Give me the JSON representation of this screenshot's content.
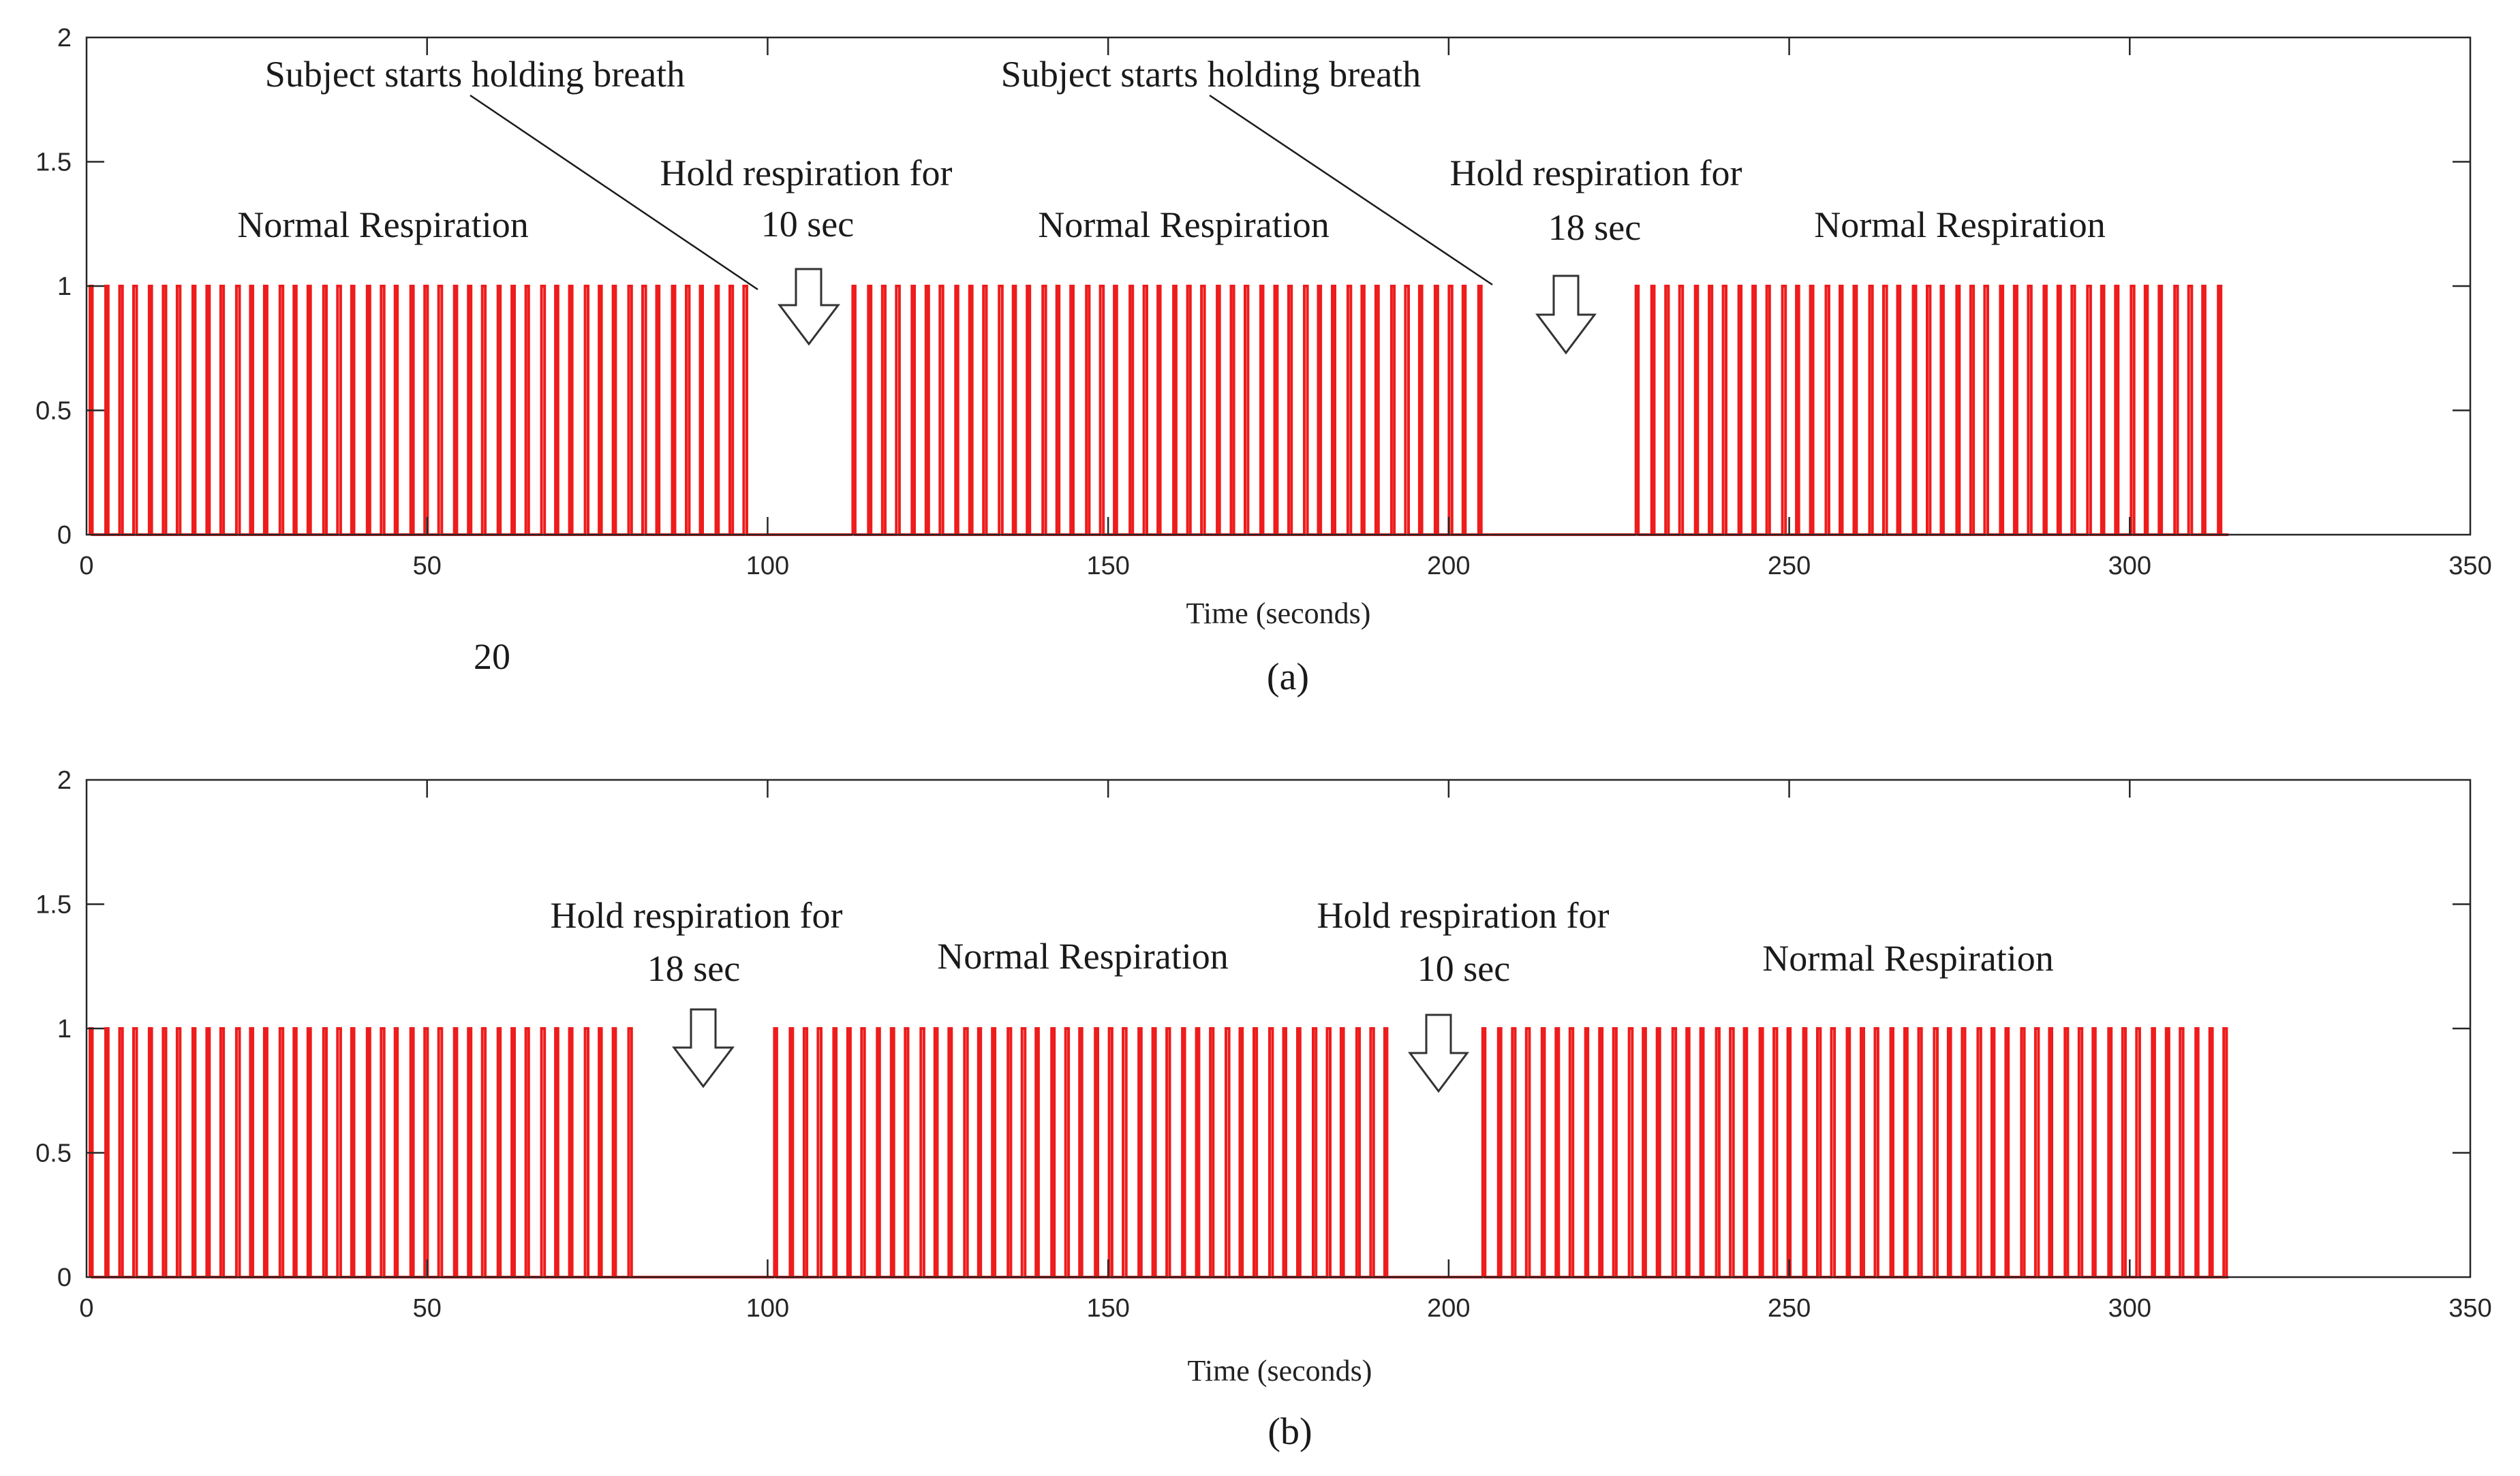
{
  "chart_data": [
    {
      "type": "line",
      "panel_label": "(a)",
      "xlabel": "Time (seconds)",
      "ylabel": "",
      "xlim": [
        0,
        350
      ],
      "ylim": [
        0,
        2
      ],
      "xticks": [
        "0",
        "50",
        "100",
        "150",
        "200",
        "250",
        "300",
        "350"
      ],
      "yticks": [
        "0",
        "0.5",
        "1",
        "1.5",
        "2"
      ],
      "series": [
        {
          "name": "respiration pulses",
          "color": "#ee1c1c",
          "segments": [
            {
              "label": "Normal Respiration",
              "start": 0.5,
              "end": 98.5
            },
            {
              "label": "Hold respiration for 10 sec",
              "start": 98.5,
              "end": 112.5,
              "hold": true
            },
            {
              "label": "Normal Respiration",
              "start": 112.5,
              "end": 206
            },
            {
              "label": "Hold respiration for 18 sec",
              "start": 206,
              "end": 227.5,
              "hold": true
            },
            {
              "label": "Normal Respiration",
              "start": 227.5,
              "end": 314.5
            }
          ]
        }
      ],
      "annotations": [
        {
          "id": "normal1",
          "text": [
            "Normal Respiration"
          ]
        },
        {
          "id": "subject1",
          "text": [
            "Subject starts holding breath"
          ]
        },
        {
          "id": "hold1",
          "text": [
            "Hold respiration for",
            "10 sec"
          ]
        },
        {
          "id": "normal2",
          "text": [
            "Normal Respiration"
          ]
        },
        {
          "id": "subject2",
          "text": [
            "Subject starts holding breath"
          ]
        },
        {
          "id": "hold2",
          "text": [
            "Hold respiration for",
            "18  sec"
          ]
        },
        {
          "id": "normal3",
          "text": [
            "Normal Respiration"
          ]
        }
      ],
      "extra_text": "20"
    },
    {
      "type": "line",
      "panel_label": "(b)",
      "xlabel": "Time (seconds)",
      "ylabel": "",
      "xlim": [
        0,
        350
      ],
      "ylim": [
        0,
        2
      ],
      "xticks": [
        "0",
        "50",
        "100",
        "150",
        "200",
        "250",
        "300",
        "350"
      ],
      "yticks": [
        "0",
        "0.5",
        "1",
        "1.5",
        "2"
      ],
      "series": [
        {
          "name": "respiration pulses",
          "color": "#ee1c1c",
          "segments": [
            {
              "label": "Normal Respiration",
              "start": 0.5,
              "end": 80.5
            },
            {
              "label": "Hold respiration for 18 sec",
              "start": 80.5,
              "end": 101,
              "hold": true
            },
            {
              "label": "Normal Respiration",
              "start": 101,
              "end": 192.5
            },
            {
              "label": "Hold respiration for 10 sec",
              "start": 192.5,
              "end": 205,
              "hold": true
            },
            {
              "label": "Normal Respiration",
              "start": 205,
              "end": 314.5
            }
          ]
        }
      ],
      "annotations": [
        {
          "id": "hold1",
          "text": [
            "Hold respiration for",
            "18  sec"
          ]
        },
        {
          "id": "normal1",
          "text": [
            "Normal Respiration"
          ]
        },
        {
          "id": "hold2",
          "text": [
            "Hold respiration for",
            "10 sec"
          ]
        },
        {
          "id": "normal2",
          "text": [
            "Normal Respiration"
          ]
        }
      ]
    }
  ]
}
